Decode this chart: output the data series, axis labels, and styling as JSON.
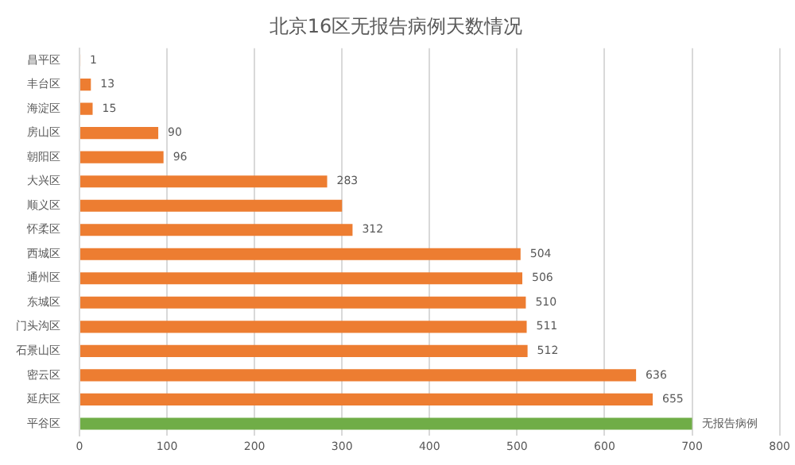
{
  "chart_data": {
    "type": "bar",
    "orientation": "horizontal",
    "title": "北京16区无报告病例天数情况",
    "categories": [
      "昌平区",
      "丰台区",
      "海淀区",
      "房山区",
      "朝阳区",
      "大兴区",
      "顺义区",
      "怀柔区",
      "西城区",
      "通州区",
      "东城区",
      "门头沟区",
      "石景山区",
      "密云区",
      "延庆区",
      "平谷区"
    ],
    "values": [
      1,
      13,
      15,
      90,
      96,
      283,
      300,
      312,
      504,
      506,
      510,
      511,
      512,
      636,
      655,
      700
    ],
    "colors": [
      "#ed7d31",
      "#ed7d31",
      "#ed7d31",
      "#ed7d31",
      "#ed7d31",
      "#ed7d31",
      "#ed7d31",
      "#ed7d31",
      "#ed7d31",
      "#ed7d31",
      "#ed7d31",
      "#ed7d31",
      "#ed7d31",
      "#ed7d31",
      "#ed7d31",
      "#70ad47"
    ],
    "value_labels": [
      "1",
      "13",
      "15",
      "90",
      "96",
      "283",
      null,
      "312",
      "504",
      "506",
      "510",
      "511",
      "512",
      "636",
      "655",
      "无报告病例"
    ],
    "xlim": [
      0,
      800
    ],
    "xticks": [
      0,
      100,
      200,
      300,
      400,
      500,
      600,
      700,
      800
    ],
    "grid": "x",
    "legend": false
  }
}
